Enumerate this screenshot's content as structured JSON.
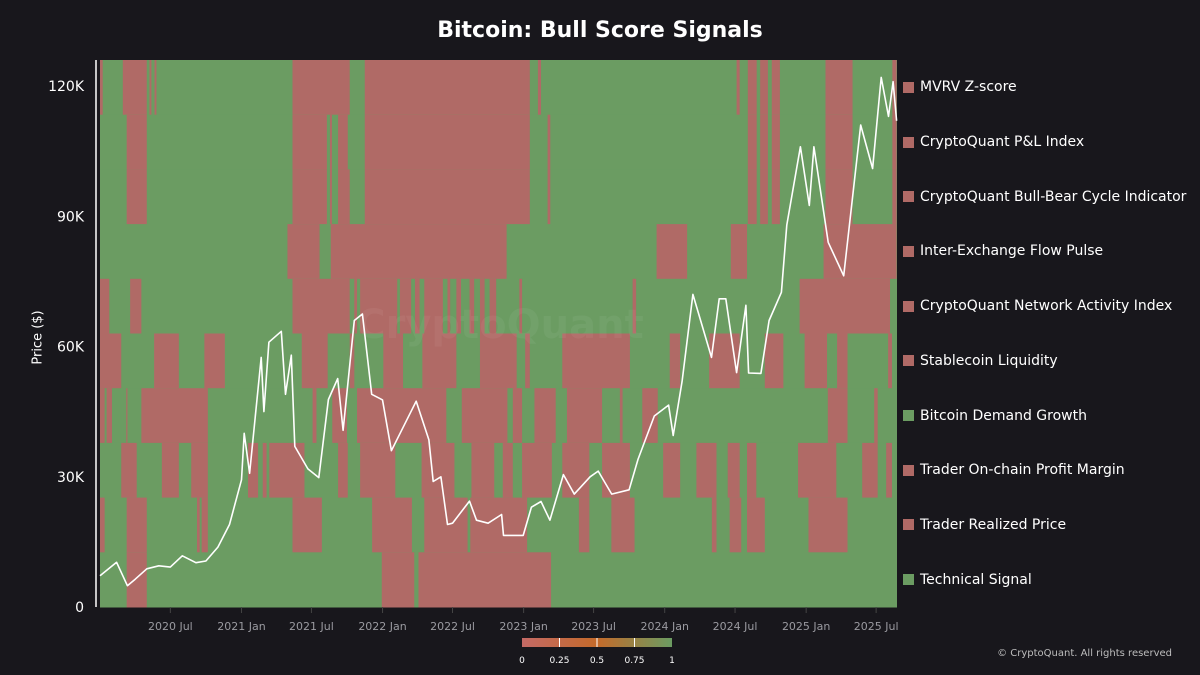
{
  "title": "Bitcoin: Bull Score Signals",
  "copyright": "© CryptoQuant. All rights reserved",
  "watermark": "CryptoQuant",
  "colors": {
    "background": "#18171c",
    "bearish": "#b06a66",
    "bullish": "#6b9c62",
    "mid": "#c46a2a",
    "price_line": "#ffffff"
  },
  "chart_data": {
    "type": "heatmap",
    "title": "Bitcoin: Bull Score Signals",
    "ylabel": "Price ($)",
    "xlim": [
      "2020-01-01",
      "2025-08-24"
    ],
    "ylim": [
      0,
      126000
    ],
    "x_ticks": [
      {
        "label": "2020 Jul",
        "date": "2020-07-01"
      },
      {
        "label": "2021 Jan",
        "date": "2021-01-01"
      },
      {
        "label": "2021 Jul",
        "date": "2021-07-01"
      },
      {
        "label": "2022 Jan",
        "date": "2022-01-01"
      },
      {
        "label": "2022 Jul",
        "date": "2022-07-01"
      },
      {
        "label": "2023 Jan",
        "date": "2023-01-01"
      },
      {
        "label": "2023 Jul",
        "date": "2023-07-01"
      },
      {
        "label": "2024 Jan",
        "date": "2024-01-01"
      },
      {
        "label": "2024 Jul",
        "date": "2024-07-01"
      },
      {
        "label": "2025 Jan",
        "date": "2025-01-01"
      },
      {
        "label": "2025 Jul",
        "date": "2025-07-01"
      }
    ],
    "y_ticks": [
      {
        "label": "0",
        "value": 0
      },
      {
        "label": "30K",
        "value": 30000
      },
      {
        "label": "60K",
        "value": 60000
      },
      {
        "label": "90K",
        "value": 90000
      },
      {
        "label": "120K",
        "value": 120000
      }
    ],
    "colorbar": {
      "min": 0,
      "max": 1,
      "ticks": [
        "0",
        "0.25",
        "0.5",
        "0.75",
        "1"
      ],
      "placement": "bottom"
    },
    "legend_placement": "right",
    "default_value": 1,
    "signals": [
      {
        "name": "MVRV Z-score",
        "legend_color": "#b06a66",
        "zero_periods": [
          [
            "2020-01-01",
            "2020-01-08"
          ],
          [
            "2020-02-29",
            "2020-05-01"
          ],
          [
            "2020-05-08",
            "2020-05-13"
          ],
          [
            "2020-05-21",
            "2020-05-26"
          ],
          [
            "2021-05-13",
            "2021-10-08"
          ],
          [
            "2021-11-16",
            "2023-01-17"
          ],
          [
            "2023-02-07",
            "2023-02-15"
          ],
          [
            "2024-07-05",
            "2024-07-13"
          ],
          [
            "2024-08-03",
            "2024-08-26"
          ],
          [
            "2024-09-04",
            "2024-09-24"
          ],
          [
            "2024-10-04",
            "2024-10-25"
          ],
          [
            "2025-02-20",
            "2025-05-01"
          ],
          [
            "2025-08-12",
            "2025-08-23"
          ]
        ]
      },
      {
        "name": "CryptoQuant P&L Index",
        "legend_color": "#b06a66",
        "zero_periods": [
          [
            "2020-03-10",
            "2020-05-01"
          ],
          [
            "2021-05-13",
            "2021-08-10"
          ],
          [
            "2021-08-18",
            "2021-08-23"
          ],
          [
            "2021-09-08",
            "2021-10-03"
          ],
          [
            "2021-11-16",
            "2023-01-17"
          ],
          [
            "2023-03-04",
            "2023-03-11"
          ],
          [
            "2024-08-03",
            "2024-08-26"
          ],
          [
            "2024-09-04",
            "2024-09-24"
          ],
          [
            "2024-10-04",
            "2024-10-25"
          ],
          [
            "2025-02-20",
            "2025-05-01"
          ],
          [
            "2025-08-12",
            "2025-08-23"
          ]
        ]
      },
      {
        "name": "CryptoQuant Bull-Bear Cycle Indicator",
        "legend_color": "#b06a66",
        "zero_periods": [
          [
            "2020-03-10",
            "2020-05-01"
          ],
          [
            "2021-05-13",
            "2021-08-10"
          ],
          [
            "2021-08-18",
            "2021-08-23"
          ],
          [
            "2021-09-08",
            "2021-10-08"
          ],
          [
            "2021-11-16",
            "2023-01-17"
          ],
          [
            "2023-03-04",
            "2023-03-11"
          ],
          [
            "2024-08-03",
            "2024-08-26"
          ],
          [
            "2024-09-04",
            "2024-09-24"
          ],
          [
            "2024-10-04",
            "2024-10-25"
          ],
          [
            "2025-02-20",
            "2025-05-01"
          ],
          [
            "2025-08-12",
            "2025-08-23"
          ]
        ]
      },
      {
        "name": "Inter-Exchange Flow Pulse",
        "legend_color": "#b06a66",
        "zero_periods": [
          [
            "2021-04-30",
            "2021-07-22"
          ],
          [
            "2021-08-20",
            "2022-11-18"
          ],
          [
            "2023-12-11",
            "2024-02-28"
          ],
          [
            "2024-06-20",
            "2024-08-01"
          ],
          [
            "2025-02-15",
            "2025-08-23"
          ]
        ]
      },
      {
        "name": "CryptoQuant Network Activity Index",
        "legend_color": "#b06a66",
        "zero_periods": [
          [
            "2020-01-01",
            "2020-01-25"
          ],
          [
            "2020-03-19",
            "2020-04-17"
          ],
          [
            "2021-05-13",
            "2021-10-08"
          ],
          [
            "2021-10-20",
            "2021-10-27"
          ],
          [
            "2021-11-04",
            "2022-02-08"
          ],
          [
            "2022-02-15",
            "2022-03-16"
          ],
          [
            "2022-03-26",
            "2022-04-07"
          ],
          [
            "2022-04-19",
            "2022-06-06"
          ],
          [
            "2022-06-18",
            "2022-06-25"
          ],
          [
            "2022-07-11",
            "2022-07-23"
          ],
          [
            "2022-08-14",
            "2022-08-26"
          ],
          [
            "2022-09-10",
            "2022-09-22"
          ],
          [
            "2022-10-05",
            "2022-10-22"
          ],
          [
            "2022-12-21",
            "2022-12-28"
          ],
          [
            "2023-10-10",
            "2023-10-19"
          ],
          [
            "2024-12-15",
            "2025-08-06"
          ]
        ]
      },
      {
        "name": "Stablecoin Liquidity",
        "legend_color": "#b06a66",
        "zero_periods": [
          [
            "2020-01-01",
            "2020-02-25"
          ],
          [
            "2020-05-20",
            "2020-07-23"
          ],
          [
            "2020-09-27",
            "2020-11-19"
          ],
          [
            "2021-06-06",
            "2021-08-12"
          ],
          [
            "2021-10-08",
            "2021-10-20"
          ],
          [
            "2022-01-03",
            "2022-02-23"
          ],
          [
            "2022-04-14",
            "2022-07-11"
          ],
          [
            "2022-09-10",
            "2022-12-14"
          ],
          [
            "2023-01-05",
            "2023-01-17"
          ],
          [
            "2023-04-11",
            "2023-10-03"
          ],
          [
            "2024-01-14",
            "2024-02-10"
          ],
          [
            "2024-04-25",
            "2024-07-13"
          ],
          [
            "2024-09-16",
            "2024-11-03"
          ],
          [
            "2024-12-28",
            "2025-02-24"
          ],
          [
            "2025-03-22",
            "2025-04-18"
          ],
          [
            "2025-08-01",
            "2025-08-11"
          ]
        ]
      },
      {
        "name": "Bitcoin Demand Growth",
        "legend_color": "#6b9c62",
        "zero_periods": [
          [
            "2020-01-01",
            "2020-01-13"
          ],
          [
            "2020-01-18",
            "2020-02-01"
          ],
          [
            "2020-03-09",
            "2020-03-12"
          ],
          [
            "2020-04-17",
            "2020-10-06"
          ],
          [
            "2021-07-04",
            "2021-07-14"
          ],
          [
            "2021-08-24",
            "2021-10-01"
          ],
          [
            "2021-10-27",
            "2022-06-15"
          ],
          [
            "2022-07-25",
            "2022-11-20"
          ],
          [
            "2022-12-04",
            "2022-12-28"
          ],
          [
            "2023-01-29",
            "2023-03-25"
          ],
          [
            "2023-04-23",
            "2023-07-23"
          ],
          [
            "2023-09-07",
            "2023-09-14"
          ],
          [
            "2023-11-04",
            "2023-12-14"
          ],
          [
            "2025-02-26",
            "2025-04-18"
          ],
          [
            "2025-06-26",
            "2025-07-05"
          ]
        ]
      },
      {
        "name": "Trader On-chain Profit Margin",
        "legend_color": "#b06a66",
        "zero_periods": [
          [
            "2020-02-25",
            "2020-04-05"
          ],
          [
            "2020-06-09",
            "2020-07-23"
          ],
          [
            "2020-08-24",
            "2020-10-06"
          ],
          [
            "2021-01-18",
            "2021-02-13"
          ],
          [
            "2021-02-25",
            "2021-03-07"
          ],
          [
            "2021-03-14",
            "2021-06-13"
          ],
          [
            "2021-09-08",
            "2021-10-03"
          ],
          [
            "2021-11-04",
            "2022-02-03"
          ],
          [
            "2022-04-12",
            "2022-07-06"
          ],
          [
            "2022-08-19",
            "2022-10-17"
          ],
          [
            "2022-11-08",
            "2022-12-04"
          ],
          [
            "2022-12-28",
            "2023-03-15"
          ],
          [
            "2023-04-11",
            "2023-06-20"
          ],
          [
            "2023-07-23",
            "2023-10-03"
          ],
          [
            "2023-12-28",
            "2024-02-10"
          ],
          [
            "2024-03-23",
            "2024-05-14"
          ],
          [
            "2024-06-12",
            "2024-07-13"
          ],
          [
            "2024-08-01",
            "2024-08-25"
          ],
          [
            "2024-12-11",
            "2025-03-20"
          ],
          [
            "2025-05-26",
            "2025-07-05"
          ],
          [
            "2025-07-27",
            "2025-08-11"
          ]
        ]
      },
      {
        "name": "Trader Realized Price",
        "legend_color": "#b06a66",
        "zero_periods": [
          [
            "2020-01-01",
            "2020-01-13"
          ],
          [
            "2020-03-10",
            "2020-05-01"
          ],
          [
            "2020-09-08",
            "2020-09-15"
          ],
          [
            "2020-09-20",
            "2020-10-06"
          ],
          [
            "2021-05-13",
            "2021-07-28"
          ],
          [
            "2021-12-05",
            "2022-03-18"
          ],
          [
            "2022-04-19",
            "2022-08-09"
          ],
          [
            "2022-08-16",
            "2023-01-10"
          ],
          [
            "2023-05-24",
            "2023-06-20"
          ],
          [
            "2023-08-16",
            "2023-10-15"
          ],
          [
            "2024-05-02",
            "2024-05-14"
          ],
          [
            "2024-06-17",
            "2024-07-17"
          ],
          [
            "2024-08-01",
            "2024-09-16"
          ],
          [
            "2025-01-07",
            "2025-04-18"
          ]
        ]
      },
      {
        "name": "Technical Signal",
        "legend_color": "#6b9c62",
        "zero_periods": [
          [
            "2020-03-10",
            "2020-05-01"
          ],
          [
            "2021-12-30",
            "2022-03-24"
          ],
          [
            "2022-04-04",
            "2023-03-13"
          ]
        ]
      }
    ],
    "price_series": {
      "dates": [
        "2020-01-01",
        "2020-02-13",
        "2020-03-12",
        "2020-04-01",
        "2020-05-01",
        "2020-06-01",
        "2020-07-01",
        "2020-08-01",
        "2020-09-05",
        "2020-10-01",
        "2020-11-01",
        "2020-12-01",
        "2021-01-01",
        "2021-01-08",
        "2021-01-22",
        "2021-02-21",
        "2021-02-28",
        "2021-03-13",
        "2021-04-14",
        "2021-04-25",
        "2021-05-10",
        "2021-05-19",
        "2021-06-22",
        "2021-07-20",
        "2021-08-14",
        "2021-09-07",
        "2021-09-21",
        "2021-10-20",
        "2021-11-10",
        "2021-12-04",
        "2022-01-01",
        "2022-01-24",
        "2022-03-29",
        "2022-05-01",
        "2022-05-12",
        "2022-06-01",
        "2022-06-18",
        "2022-07-01",
        "2022-08-14",
        "2022-09-01",
        "2022-10-01",
        "2022-11-05",
        "2022-11-10",
        "2022-12-31",
        "2023-01-21",
        "2023-02-15",
        "2023-03-10",
        "2023-04-14",
        "2023-05-12",
        "2023-06-22",
        "2023-07-13",
        "2023-08-17",
        "2023-10-01",
        "2023-10-24",
        "2023-12-05",
        "2024-01-11",
        "2024-01-23",
        "2024-02-15",
        "2024-03-14",
        "2024-05-01",
        "2024-05-21",
        "2024-06-07",
        "2024-07-05",
        "2024-07-29",
        "2024-08-05",
        "2024-09-06",
        "2024-09-27",
        "2024-10-29",
        "2024-11-12",
        "2024-12-17",
        "2025-01-09",
        "2025-01-21",
        "2025-02-27",
        "2025-04-08",
        "2025-05-22",
        "2025-06-22",
        "2025-07-14",
        "2025-08-02",
        "2025-08-14",
        "2025-08-23"
      ],
      "values": [
        7200,
        10300,
        4900,
        6400,
        8800,
        9500,
        9200,
        11800,
        10200,
        10600,
        13800,
        19000,
        29300,
        40000,
        30800,
        57500,
        45000,
        61000,
        63500,
        49000,
        58000,
        37000,
        31800,
        29800,
        47800,
        52600,
        40700,
        66000,
        67500,
        49000,
        47700,
        36000,
        47400,
        38500,
        28900,
        30000,
        19000,
        19300,
        24400,
        20000,
        19300,
        21300,
        16500,
        16500,
        23000,
        24300,
        20000,
        30500,
        26000,
        30000,
        31300,
        26000,
        27000,
        34000,
        44000,
        46500,
        39500,
        52000,
        72000,
        57500,
        71000,
        71000,
        54000,
        69500,
        53900,
        53800,
        66000,
        72500,
        88000,
        106000,
        92500,
        106000,
        84000,
        76300,
        111000,
        101000,
        122000,
        113000,
        121000,
        112000
      ]
    }
  }
}
